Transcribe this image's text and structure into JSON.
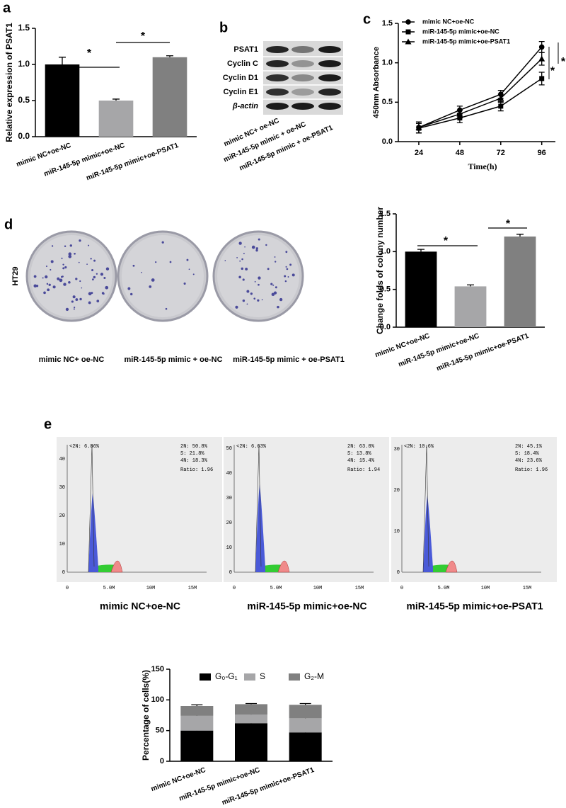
{
  "panel_labels": [
    "a",
    "b",
    "c",
    "d",
    "e"
  ],
  "chart_data": [
    {
      "type": "bar",
      "ylabel": "Relative expression of PSAT1",
      "categories": [
        "mimic NC+oe-NC",
        "miR-145-5p mimic+oe-NC",
        "miR-145-5p mimic+oe-PSAT1"
      ],
      "values": [
        1.0,
        0.5,
        1.1
      ],
      "errors": [
        0.1,
        0.02,
        0.02
      ],
      "colors": [
        "#000000",
        "#a6a6a8",
        "#808080"
      ],
      "ylim": [
        0,
        1.5
      ],
      "yticks": [
        {
          "value": 0,
          "label": "0.0"
        },
        0.5,
        {
          "value": 1,
          "label": "1.0"
        },
        1.5
      ],
      "annotations": [
        "*",
        "*"
      ]
    },
    {
      "type": "line",
      "xlabel": "Time(h)",
      "ylabel": "450nm Absorbance",
      "x": [
        24,
        48,
        72,
        96
      ],
      "xlim": [
        12,
        104
      ],
      "xticks": [
        24,
        48,
        72,
        96
      ],
      "ylim": [
        0,
        1.5
      ],
      "yticks": [
        {
          "value": 0,
          "label": "0.0"
        },
        0.5,
        {
          "value": 1,
          "label": "1.0"
        },
        1.5
      ],
      "series": [
        {
          "name": "mimic NC+oe-NC",
          "color": "#000000",
          "marker": "circle",
          "values": [
            0.18,
            0.4,
            0.6,
            1.2
          ],
          "errors": [
            0.07,
            0.05,
            0.05,
            0.07
          ]
        },
        {
          "name": "miR-145-5p mimic+oe-NC",
          "color": "#000000",
          "marker": "square",
          "values": [
            0.17,
            0.3,
            0.45,
            0.8
          ],
          "errors": [
            0.06,
            0.06,
            0.06,
            0.08
          ]
        },
        {
          "name": "miR-145-5p mimic+oe-PSAT1",
          "color": "#000000",
          "marker": "triangle",
          "values": [
            0.18,
            0.35,
            0.55,
            1.05
          ],
          "errors": [
            0.07,
            0.05,
            0.05,
            0.08
          ]
        }
      ],
      "annotations": [
        "*",
        "*"
      ]
    },
    {
      "type": "bar",
      "ylabel": "Change folds of  colony number",
      "categories": [
        "mimic NC+oe-NC",
        "miR-145-5p mimic+oe-NC",
        "miR-145-5p mimic+oe-PSAT1"
      ],
      "values": [
        1.0,
        0.54,
        1.2
      ],
      "errors": [
        0.03,
        0.02,
        0.03
      ],
      "colors": [
        "#000000",
        "#a6a6a8",
        "#808080"
      ],
      "ylim": [
        0,
        1.5
      ],
      "yticks": [
        {
          "value": 0,
          "label": "0.0"
        },
        0.5,
        {
          "value": 1,
          "label": "1.0"
        },
        1.5
      ],
      "annotations": [
        "*",
        "*"
      ]
    },
    {
      "type": "stacked_bar",
      "ylabel": "Percentage of cells(%)",
      "categories": [
        "mimic NC+oe-NC",
        "miR-145-5p mimic+oe-NC",
        "miR-145-5p mimic+oe-PSAT1"
      ],
      "series": [
        {
          "name": "G₀-G₁",
          "color": "#000000",
          "values": [
            50,
            62,
            47
          ],
          "errors": [
            3,
            3,
            3
          ]
        },
        {
          "name": "S",
          "color": "#a6a6a8",
          "values": [
            24,
            14,
            23
          ],
          "errors": [
            2,
            2,
            2
          ]
        },
        {
          "name": "G₂-M",
          "color": "#808080",
          "values": [
            16,
            17,
            22
          ],
          "errors": [
            2,
            1,
            2
          ]
        }
      ],
      "ylim": [
        0,
        150
      ],
      "yticks": [
        0,
        50,
        100,
        150
      ]
    }
  ],
  "blot": {
    "rows": [
      "PSAT1",
      "Cyclin C",
      "Cyclin D1",
      "Cyclin E1",
      "β-actin"
    ],
    "lanes": [
      "mimic NC+ oe-NC",
      "miR-145-5p mimic + oe-NC",
      "miR-145-5p mimic + oe-PSAT1"
    ]
  },
  "colony": {
    "cell_line": "HT29",
    "labels": [
      "mimic NC+ oe-NC",
      "miR-145-5p mimic + oe-NC",
      "miR-145-5p mimic + oe-PSAT1"
    ]
  },
  "flow": {
    "xticks": [
      "0",
      "5.0M",
      "10M",
      "15M"
    ],
    "panels": [
      {
        "title": "mimic NC+oe-NC",
        "sub2n": "<2N: 6.86%",
        "stats": [
          "2N: 50.8%",
          "S: 21.8%",
          "4N: 18.3%"
        ],
        "ratio": "Ratio: 1.96",
        "yticks": [
          "0",
          "10",
          "20",
          "30",
          "40"
        ]
      },
      {
        "title": "miR-145-5p mimic+oe-NC",
        "sub2n": "<2N: 6.63%",
        "stats": [
          "2N: 63.0%",
          "S: 13.8%",
          "4N: 15.4%"
        ],
        "ratio": "Ratio: 1.94",
        "yticks": [
          "0",
          "10",
          "20",
          "30",
          "40",
          "50"
        ]
      },
      {
        "title": "miR-145-5p mimic+oe-PSAT1",
        "sub2n": "<2N: 10.6%",
        "stats": [
          "2N: 45.1%",
          "S: 18.4%",
          "4N: 23.6%"
        ],
        "ratio": "Ratio: 1.96",
        "yticks": [
          "0",
          "10",
          "20",
          "30"
        ]
      }
    ]
  }
}
